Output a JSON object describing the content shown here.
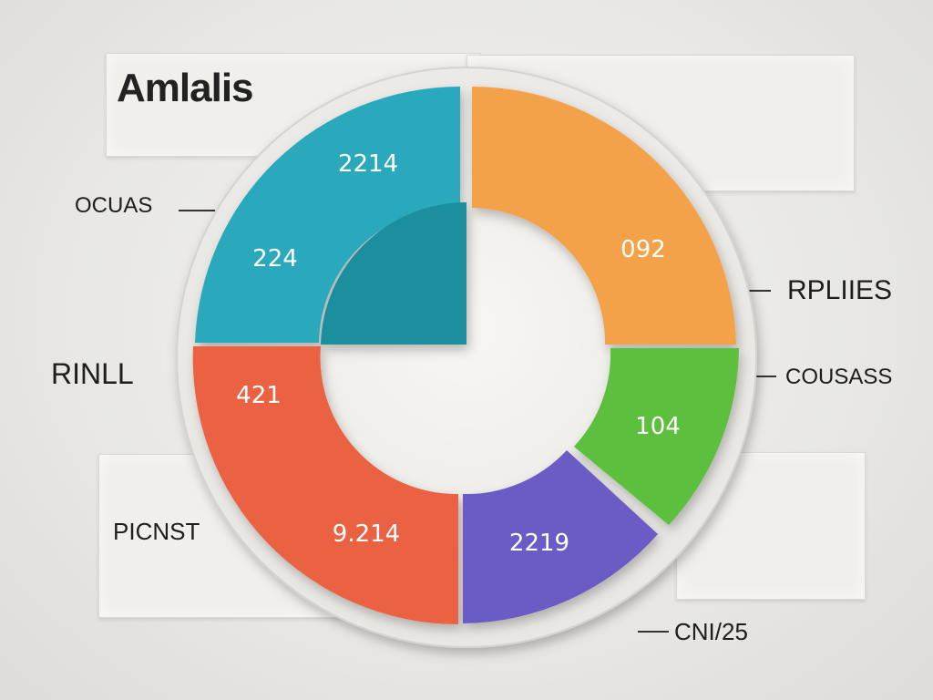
{
  "chart_data": {
    "type": "pie",
    "title": "Amlalis",
    "labels": [
      "OCUAS",
      "RPLIIES",
      "COUSASS",
      "CNI/25",
      "PICNST",
      "RINLL"
    ],
    "slices": [
      {
        "name": "teal",
        "values": [
          "2214",
          "224"
        ],
        "color": "#2aa9bd"
      },
      {
        "name": "orange",
        "values": [
          "092"
        ],
        "color": "#f4a24a"
      },
      {
        "name": "green",
        "values": [
          "104"
        ],
        "color": "#5cbf3e"
      },
      {
        "name": "purple",
        "values": [
          "2219"
        ],
        "color": "#6a5cc4"
      },
      {
        "name": "red",
        "values": [
          "421",
          "9.214"
        ],
        "color": "#ea6242"
      }
    ]
  }
}
